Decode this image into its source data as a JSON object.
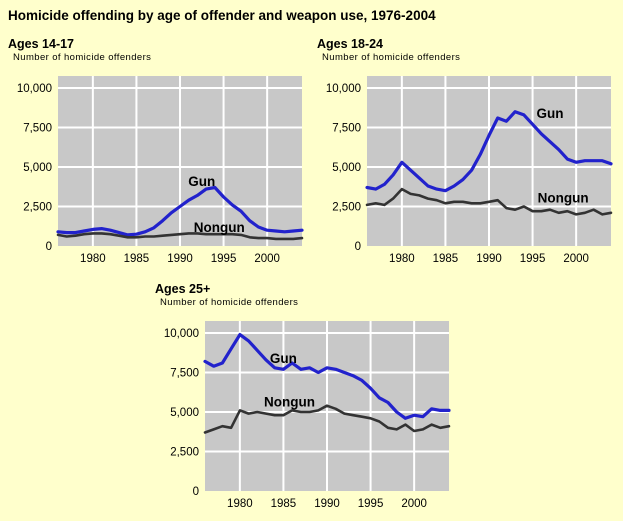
{
  "page": {
    "title": "Homicide offending by age of offender and weapon use, 1976-2004"
  },
  "colors": {
    "background": "#FFFFCC",
    "plot_bg": "#C8C8C8",
    "grid": "#FFFFFF",
    "gun": "#2222CC",
    "nongun": "#333333",
    "text": "#000000"
  },
  "axis": {
    "xlim": [
      1976,
      2004
    ],
    "ylim": [
      0,
      10000
    ],
    "grid": true,
    "x_tick_years": [
      1980,
      1985,
      1990,
      1995,
      2000
    ],
    "x_tick_labels": [
      "1980",
      "1985",
      "1990",
      "1995",
      "2000"
    ],
    "y_tick_values": [
      10000,
      7500,
      5000,
      2500,
      0
    ],
    "y_tick_labels": [
      "10,000",
      "7,500",
      "5,000",
      "2,500",
      "0"
    ]
  },
  "chart_data": [
    {
      "type": "line",
      "title": "Ages 14-17",
      "ylabel": "Number of homicide offenders",
      "x": [
        1976,
        1977,
        1978,
        1979,
        1980,
        1981,
        1982,
        1983,
        1984,
        1985,
        1986,
        1987,
        1988,
        1989,
        1990,
        1991,
        1992,
        1993,
        1994,
        1995,
        1996,
        1997,
        1998,
        1999,
        2000,
        2001,
        2002,
        2003,
        2004
      ],
      "series": [
        {
          "name": "Gun",
          "values": [
            900,
            850,
            850,
            950,
            1050,
            1100,
            1000,
            850,
            700,
            750,
            900,
            1150,
            1600,
            2100,
            2500,
            2900,
            3200,
            3600,
            3700,
            3100,
            2600,
            2200,
            1600,
            1200,
            1000,
            950,
            900,
            950,
            1000
          ]
        },
        {
          "name": "Nongun",
          "values": [
            700,
            600,
            650,
            750,
            800,
            800,
            750,
            650,
            550,
            550,
            600,
            600,
            650,
            700,
            750,
            800,
            800,
            750,
            750,
            750,
            750,
            700,
            550,
            500,
            500,
            450,
            450,
            450,
            500
          ]
        }
      ],
      "annotations": [
        {
          "text": "Gun",
          "year": 1992.5,
          "value": 3800
        },
        {
          "text": "Nongun",
          "year": 1994.5,
          "value": 900
        }
      ]
    },
    {
      "type": "line",
      "title": "Ages 18-24",
      "ylabel": "Number of homicide offenders",
      "x": [
        1976,
        1977,
        1978,
        1979,
        1980,
        1981,
        1982,
        1983,
        1984,
        1985,
        1986,
        1987,
        1988,
        1989,
        1990,
        1991,
        1992,
        1993,
        1994,
        1995,
        1996,
        1997,
        1998,
        1999,
        2000,
        2001,
        2002,
        2003,
        2004
      ],
      "series": [
        {
          "name": "Gun",
          "values": [
            3700,
            3600,
            3900,
            4500,
            5300,
            4800,
            4300,
            3800,
            3600,
            3500,
            3800,
            4200,
            4800,
            5800,
            7000,
            8100,
            7900,
            8500,
            8300,
            7700,
            7100,
            6600,
            6100,
            5500,
            5300,
            5400,
            5400,
            5400,
            5200
          ]
        },
        {
          "name": "Nongun",
          "values": [
            2600,
            2700,
            2600,
            3000,
            3600,
            3300,
            3200,
            3000,
            2900,
            2700,
            2800,
            2800,
            2700,
            2700,
            2800,
            2900,
            2400,
            2300,
            2500,
            2200,
            2200,
            2300,
            2100,
            2200,
            2000,
            2100,
            2300,
            2000,
            2100
          ]
        }
      ],
      "annotations": [
        {
          "text": "Gun",
          "year": 1997,
          "value": 8100
        },
        {
          "text": "Nongun",
          "year": 1998.5,
          "value": 2750
        }
      ]
    },
    {
      "type": "line",
      "title": "Ages 25+",
      "ylabel": "Number of homicide offenders",
      "x": [
        1976,
        1977,
        1978,
        1979,
        1980,
        1981,
        1982,
        1983,
        1984,
        1985,
        1986,
        1987,
        1988,
        1989,
        1990,
        1991,
        1992,
        1993,
        1994,
        1995,
        1996,
        1997,
        1998,
        1999,
        2000,
        2001,
        2002,
        2003,
        2004
      ],
      "series": [
        {
          "name": "Gun",
          "values": [
            8200,
            7900,
            8100,
            9000,
            9900,
            9500,
            8900,
            8300,
            7800,
            7700,
            8100,
            7700,
            7800,
            7500,
            7800,
            7700,
            7500,
            7300,
            7000,
            6500,
            5900,
            5600,
            5000,
            4600,
            4800,
            4700,
            5200,
            5100,
            5100
          ]
        },
        {
          "name": "Nongun",
          "values": [
            3700,
            3900,
            4100,
            4000,
            5100,
            4900,
            5000,
            4900,
            4800,
            4800,
            5100,
            5000,
            5000,
            5100,
            5400,
            5200,
            4900,
            4800,
            4700,
            4600,
            4400,
            4000,
            3900,
            4200,
            3800,
            3900,
            4200,
            4000,
            4100
          ]
        }
      ],
      "annotations": [
        {
          "text": "Gun",
          "year": 1985,
          "value": 8100
        },
        {
          "text": "Nongun",
          "year": 1985.7,
          "value": 5350
        }
      ]
    }
  ]
}
